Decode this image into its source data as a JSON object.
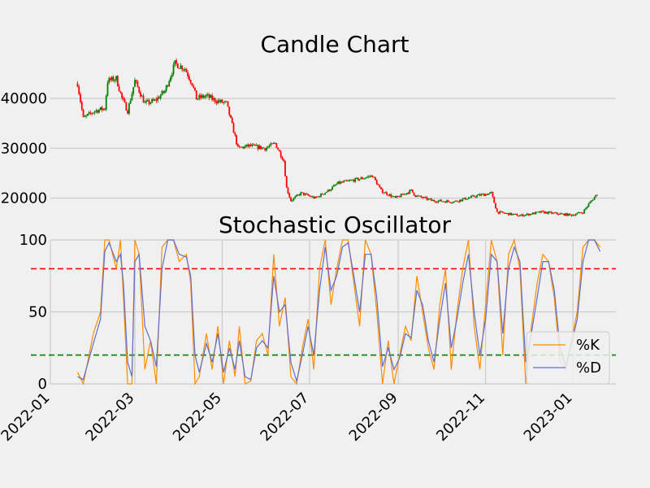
{
  "candle_chart": {
    "title": "Candle Chart",
    "yticks": [
      {
        "value": 20000,
        "label": "20000"
      },
      {
        "value": 30000,
        "label": "30000"
      },
      {
        "value": 40000,
        "label": "40000"
      }
    ]
  },
  "oscillator": {
    "title": "Stochastic Oscillator",
    "yticks": [
      {
        "value": 0,
        "label": "0"
      },
      {
        "value": 50,
        "label": "50"
      },
      {
        "value": 100,
        "label": "100"
      }
    ],
    "legend": {
      "k_label": "%K",
      "d_label": "%D"
    }
  },
  "xticks": [
    "2022-01",
    "2022-03",
    "2022-05",
    "2022-07",
    "2022-09",
    "2022-11",
    "2023-01"
  ],
  "colors": {
    "background": "#f0f0f0",
    "grid": "#cbcbcb",
    "up": "#008000",
    "down": "#ff0000",
    "k_line": "#ff8c00",
    "d_line": "#5f6fcf",
    "overbought": "#ff0000",
    "oversold": "#008000"
  },
  "chart_data": [
    {
      "type": "candlestick",
      "title": "Candle Chart",
      "x_range": [
        "2022-01-01",
        "2023-01-31"
      ],
      "ylim": [
        17000,
        48000
      ],
      "grid": true,
      "price_path": [
        [
          "2022-01-20",
          43000
        ],
        [
          "2022-01-24",
          36000
        ],
        [
          "2022-02-01",
          37500
        ],
        [
          "2022-02-08",
          38000
        ],
        [
          "2022-02-10",
          43500
        ],
        [
          "2022-02-16",
          44000
        ],
        [
          "2022-02-20",
          40000
        ],
        [
          "2022-02-24",
          37500
        ],
        [
          "2022-03-01",
          43500
        ],
        [
          "2022-03-08",
          39000
        ],
        [
          "2022-03-15",
          39500
        ],
        [
          "2022-03-22",
          41500
        ],
        [
          "2022-03-29",
          47000
        ],
        [
          "2022-04-05",
          46000
        ],
        [
          "2022-04-10",
          43000
        ],
        [
          "2022-04-13",
          40000
        ],
        [
          "2022-04-20",
          40500
        ],
        [
          "2022-04-27",
          39500
        ],
        [
          "2022-05-04",
          39000
        ],
        [
          "2022-05-09",
          33500
        ],
        [
          "2022-05-12",
          30000
        ],
        [
          "2022-05-20",
          30500
        ],
        [
          "2022-05-31",
          30000
        ],
        [
          "2022-06-07",
          31000
        ],
        [
          "2022-06-13",
          27500
        ],
        [
          "2022-06-15",
          22000
        ],
        [
          "2022-06-18",
          19500
        ],
        [
          "2022-06-25",
          21000
        ],
        [
          "2022-07-05",
          20000
        ],
        [
          "2022-07-14",
          21500
        ],
        [
          "2022-07-21",
          23000
        ],
        [
          "2022-07-30",
          23500
        ],
        [
          "2022-08-07",
          24000
        ],
        [
          "2022-08-14",
          24500
        ],
        [
          "2022-08-20",
          21500
        ],
        [
          "2022-08-30",
          20000
        ],
        [
          "2022-09-10",
          21500
        ],
        [
          "2022-09-13",
          20500
        ],
        [
          "2022-09-25",
          19500
        ],
        [
          "2022-10-10",
          19300
        ],
        [
          "2022-10-26",
          20500
        ],
        [
          "2022-11-05",
          21000
        ],
        [
          "2022-11-09",
          17200
        ],
        [
          "2022-11-25",
          16500
        ],
        [
          "2022-12-10",
          17200
        ],
        [
          "2022-12-31",
          16600
        ],
        [
          "2023-01-08",
          17200
        ],
        [
          "2023-01-12",
          18800
        ],
        [
          "2023-01-18",
          20900
        ]
      ]
    },
    {
      "type": "line",
      "title": "Stochastic Oscillator",
      "x_range": [
        "2022-01-01",
        "2023-01-31"
      ],
      "ylim": [
        0,
        100
      ],
      "reference_lines": [
        {
          "y": 80,
          "color": "#ff0000",
          "style": "dashed"
        },
        {
          "y": 20,
          "color": "#008000",
          "style": "dashed"
        }
      ],
      "legend_position": "lower-right",
      "series": [
        {
          "name": "%K",
          "x": [
            "2022-01-20",
            "2022-01-24",
            "2022-01-31",
            "2022-02-05",
            "2022-02-08",
            "2022-02-11",
            "2022-02-16",
            "2022-02-19",
            "2022-02-21",
            "2022-02-24",
            "2022-02-27",
            "2022-03-01",
            "2022-03-04",
            "2022-03-08",
            "2022-03-12",
            "2022-03-16",
            "2022-03-20",
            "2022-03-24",
            "2022-03-28",
            "2022-04-01",
            "2022-04-06",
            "2022-04-09",
            "2022-04-12",
            "2022-04-15",
            "2022-04-20",
            "2022-04-24",
            "2022-04-28",
            "2022-05-02",
            "2022-05-06",
            "2022-05-10",
            "2022-05-13",
            "2022-05-17",
            "2022-05-21",
            "2022-05-25",
            "2022-05-29",
            "2022-06-02",
            "2022-06-06",
            "2022-06-10",
            "2022-06-14",
            "2022-06-18",
            "2022-06-22",
            "2022-06-26",
            "2022-06-30",
            "2022-07-04",
            "2022-07-08",
            "2022-07-12",
            "2022-07-16",
            "2022-07-20",
            "2022-07-24",
            "2022-07-28",
            "2022-08-01",
            "2022-08-05",
            "2022-08-09",
            "2022-08-13",
            "2022-08-17",
            "2022-08-21",
            "2022-08-25",
            "2022-08-29",
            "2022-09-02",
            "2022-09-06",
            "2022-09-10",
            "2022-09-14",
            "2022-09-18",
            "2022-09-22",
            "2022-09-26",
            "2022-09-30",
            "2022-10-04",
            "2022-10-08",
            "2022-10-12",
            "2022-10-16",
            "2022-10-20",
            "2022-10-24",
            "2022-10-28",
            "2022-11-01",
            "2022-11-05",
            "2022-11-09",
            "2022-11-13",
            "2022-11-17",
            "2022-11-21",
            "2022-11-25",
            "2022-11-29",
            "2022-12-03",
            "2022-12-07",
            "2022-12-11",
            "2022-12-15",
            "2022-12-19",
            "2022-12-23",
            "2022-12-27",
            "2022-12-31",
            "2023-01-04",
            "2023-01-08",
            "2023-01-12",
            "2023-01-16",
            "2023-01-20"
          ],
          "values": [
            8,
            0,
            35,
            50,
            100,
            100,
            80,
            100,
            60,
            0,
            0,
            100,
            90,
            10,
            30,
            0,
            95,
            100,
            100,
            85,
            90,
            70,
            0,
            5,
            35,
            10,
            40,
            0,
            30,
            5,
            40,
            0,
            2,
            30,
            35,
            20,
            90,
            40,
            60,
            5,
            0,
            25,
            45,
            10,
            80,
            100,
            55,
            80,
            100,
            100,
            70,
            40,
            100,
            90,
            50,
            0,
            30,
            0,
            20,
            40,
            30,
            75,
            50,
            25,
            10,
            55,
            80,
            10,
            50,
            80,
            100,
            40,
            10,
            55,
            100,
            85,
            20,
            90,
            100,
            80,
            0,
            40,
            70,
            90,
            85,
            60,
            15,
            10,
            30,
            50,
            95,
            100,
            100,
            95
          ],
          "note": "approximate, read from plot"
        },
        {
          "name": "%D",
          "x": [
            "2022-01-20",
            "2022-01-24",
            "2022-01-31",
            "2022-02-05",
            "2022-02-08",
            "2022-02-11",
            "2022-02-16",
            "2022-02-19",
            "2022-02-21",
            "2022-02-24",
            "2022-02-27",
            "2022-03-01",
            "2022-03-04",
            "2022-03-08",
            "2022-03-12",
            "2022-03-16",
            "2022-03-20",
            "2022-03-24",
            "2022-03-28",
            "2022-04-01",
            "2022-04-06",
            "2022-04-09",
            "2022-04-12",
            "2022-04-15",
            "2022-04-20",
            "2022-04-24",
            "2022-04-28",
            "2022-05-02",
            "2022-05-06",
            "2022-05-10",
            "2022-05-13",
            "2022-05-17",
            "2022-05-21",
            "2022-05-25",
            "2022-05-29",
            "2022-06-02",
            "2022-06-06",
            "2022-06-10",
            "2022-06-14",
            "2022-06-18",
            "2022-06-22",
            "2022-06-26",
            "2022-06-30",
            "2022-07-04",
            "2022-07-08",
            "2022-07-12",
            "2022-07-16",
            "2022-07-20",
            "2022-07-24",
            "2022-07-28",
            "2022-08-01",
            "2022-08-05",
            "2022-08-09",
            "2022-08-13",
            "2022-08-17",
            "2022-08-21",
            "2022-08-25",
            "2022-08-29",
            "2022-09-02",
            "2022-09-06",
            "2022-09-10",
            "2022-09-14",
            "2022-09-18",
            "2022-09-22",
            "2022-09-26",
            "2022-09-30",
            "2022-10-04",
            "2022-10-08",
            "2022-10-12",
            "2022-10-16",
            "2022-10-20",
            "2022-10-24",
            "2022-10-28",
            "2022-11-01",
            "2022-11-05",
            "2022-11-09",
            "2022-11-13",
            "2022-11-17",
            "2022-11-21",
            "2022-11-25",
            "2022-11-29",
            "2022-12-03",
            "2022-12-07",
            "2022-12-11",
            "2022-12-15",
            "2022-12-19",
            "2022-12-23",
            "2022-12-27",
            "2022-12-31",
            "2023-01-04",
            "2023-01-08",
            "2023-01-12",
            "2023-01-16",
            "2023-01-20"
          ],
          "values": [
            5,
            3,
            28,
            45,
            92,
            98,
            85,
            90,
            70,
            15,
            5,
            85,
            90,
            40,
            30,
            12,
            80,
            100,
            100,
            90,
            88,
            75,
            20,
            8,
            28,
            15,
            35,
            8,
            25,
            10,
            30,
            5,
            3,
            25,
            30,
            25,
            75,
            50,
            55,
            15,
            2,
            20,
            40,
            20,
            65,
            95,
            65,
            75,
            95,
            98,
            75,
            50,
            90,
            90,
            60,
            12,
            25,
            10,
            18,
            35,
            32,
            65,
            55,
            30,
            15,
            45,
            70,
            25,
            45,
            70,
            90,
            50,
            20,
            45,
            90,
            85,
            35,
            80,
            95,
            85,
            15,
            35,
            60,
            85,
            85,
            65,
            25,
            12,
            28,
            45,
            85,
            100,
            100,
            92
          ],
          "note": "approximate, read from plot"
        }
      ]
    }
  ]
}
